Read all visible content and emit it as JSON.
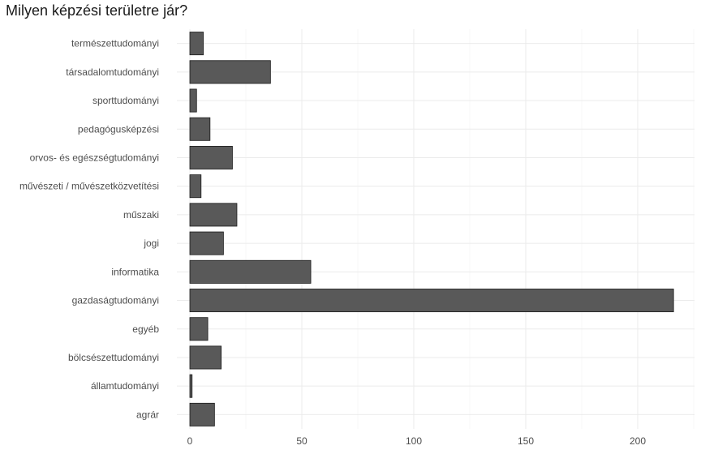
{
  "chart_data": {
    "type": "bar",
    "orientation": "horizontal",
    "title": "Milyen képzési területre jár?",
    "xlabel": "",
    "ylabel": "",
    "categories": [
      "természettudományi",
      "társadalomtudományi",
      "sporttudományi",
      "pedagógusképzési",
      "orvos- és egészségtudományi",
      "művészeti / művészetközvetítési",
      "műszaki",
      "jogi",
      "informatika",
      "gazdaságtudományi",
      "egyéb",
      "bölcsészettudományi",
      "államtudományi",
      "agrár"
    ],
    "values": [
      6,
      36,
      3,
      9,
      19,
      5,
      21,
      15,
      54,
      216,
      8,
      14,
      1,
      11
    ],
    "xlim": [
      0,
      225
    ],
    "xticks": [
      0,
      50,
      100,
      150,
      200
    ],
    "grid": true,
    "colors": {
      "bar_fill": "#595959",
      "bar_stroke": "#1a1a1a",
      "grid": "#ebebeb"
    }
  }
}
